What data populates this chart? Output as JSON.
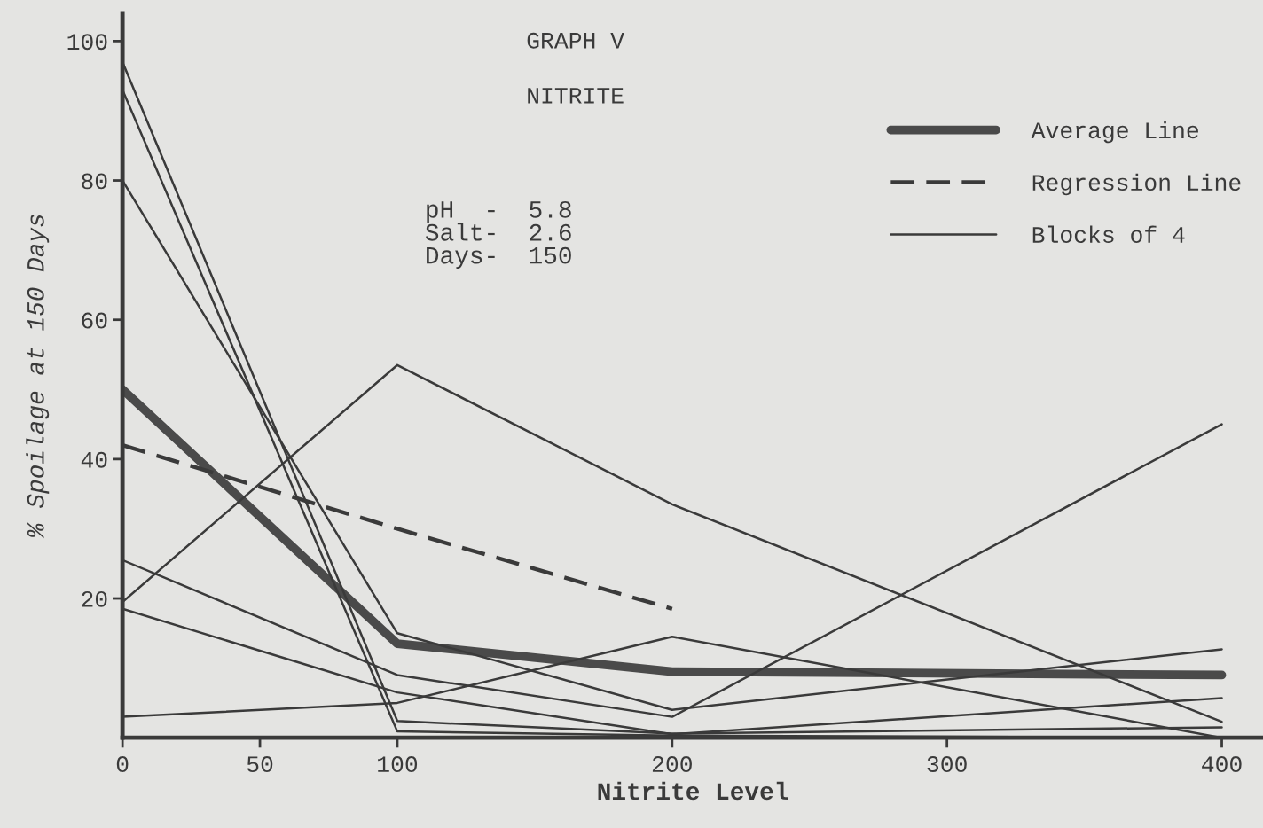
{
  "chart_data": {
    "type": "line",
    "title": "GRAPH V",
    "subtitle": "NITRITE",
    "xlabel": "Nitrite Level",
    "ylabel": "% Spoilage at 150 Days",
    "x": [
      0,
      100,
      200,
      400
    ],
    "series": [
      {
        "name": "Average Line",
        "color": "#4a4a4a",
        "values": [
          50,
          13.5,
          9.5,
          9
        ]
      },
      {
        "name": "Regression Line",
        "color": "#3a3a3a",
        "line_style": "dashed",
        "x": [
          0,
          100,
          200
        ],
        "values": [
          42,
          30,
          18.5
        ]
      },
      {
        "name": "Blocks of 4",
        "color": "#3a3a3a",
        "values": [
          97,
          2.4,
          0.6,
          1.5
        ]
      },
      {
        "color": "#3a3a3a",
        "values": [
          93,
          0.9,
          0.3,
          0
        ]
      },
      {
        "color": "#3a3a3a",
        "values": [
          80,
          15,
          4,
          12.7
        ]
      },
      {
        "color": "#3a3a3a",
        "values": [
          19.5,
          53.5,
          33.5,
          2.3
        ]
      },
      {
        "color": "#3a3a3a",
        "values": [
          25.5,
          9,
          3,
          45
        ]
      },
      {
        "color": "#3a3a3a",
        "values": [
          18.5,
          6.5,
          0.5,
          5.7
        ]
      },
      {
        "color": "#3a3a3a",
        "values": [
          3,
          5,
          14.5,
          0
        ]
      }
    ],
    "annotations": [
      "pH  -  5.8\nSalt-  2.6\nDays-  150"
    ],
    "xlim": [
      0,
      415
    ],
    "ylim": [
      0,
      104
    ],
    "xticks": [
      0,
      50,
      100,
      200,
      300,
      400
    ],
    "yticks": [
      20,
      40,
      60,
      80,
      100
    ],
    "grid": false,
    "legend": "top right",
    "marker": "none",
    "line_style": "solid"
  }
}
